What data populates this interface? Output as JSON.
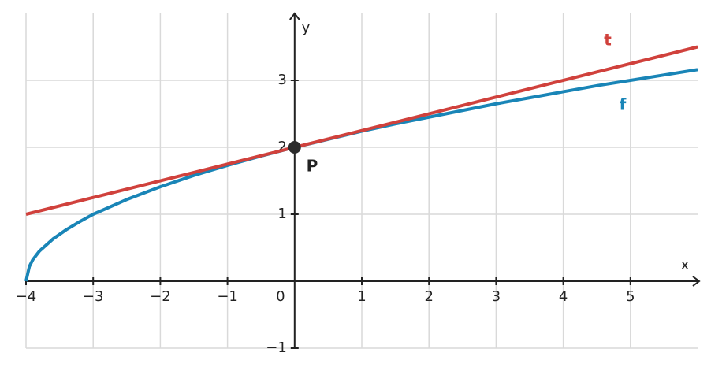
{
  "chart_data": {
    "type": "line",
    "xlabel": "x",
    "ylabel": "y",
    "xlim": [
      -4,
      6
    ],
    "ylim": [
      -1,
      4
    ],
    "xticks": [
      {
        "value": -4,
        "label": "−4"
      },
      {
        "value": -3,
        "label": "−3"
      },
      {
        "value": -2,
        "label": "−2"
      },
      {
        "value": -1,
        "label": "−1"
      },
      0,
      1,
      2,
      3,
      4,
      5
    ],
    "yticks": [
      {
        "value": -1,
        "label": "−1"
      },
      1,
      2,
      3
    ],
    "grid": true,
    "series": [
      {
        "name": "f",
        "color": "#1985b7",
        "x": [
          -4,
          -3.95,
          -3.9,
          -3.8,
          -3.6,
          -3.4,
          -3.2,
          -3,
          -2.5,
          -2,
          -1.5,
          -1,
          -0.5,
          0,
          0.5,
          1,
          1.5,
          2,
          2.5,
          3,
          3.5,
          4,
          4.5,
          5,
          5.5,
          6
        ],
        "values": [
          0,
          0.22,
          0.32,
          0.45,
          0.63,
          0.77,
          0.89,
          1,
          1.22,
          1.41,
          1.58,
          1.73,
          1.87,
          2,
          2.12,
          2.24,
          2.35,
          2.45,
          2.55,
          2.65,
          2.74,
          2.83,
          2.92,
          3,
          3.08,
          3.16
        ]
      },
      {
        "name": "t",
        "color": "#d0413c",
        "x": [
          -4,
          6
        ],
        "values": [
          1,
          3.5
        ]
      }
    ],
    "points": [
      {
        "label": "P",
        "x": 0,
        "y": 2,
        "color": "#2b2b2b"
      }
    ]
  }
}
